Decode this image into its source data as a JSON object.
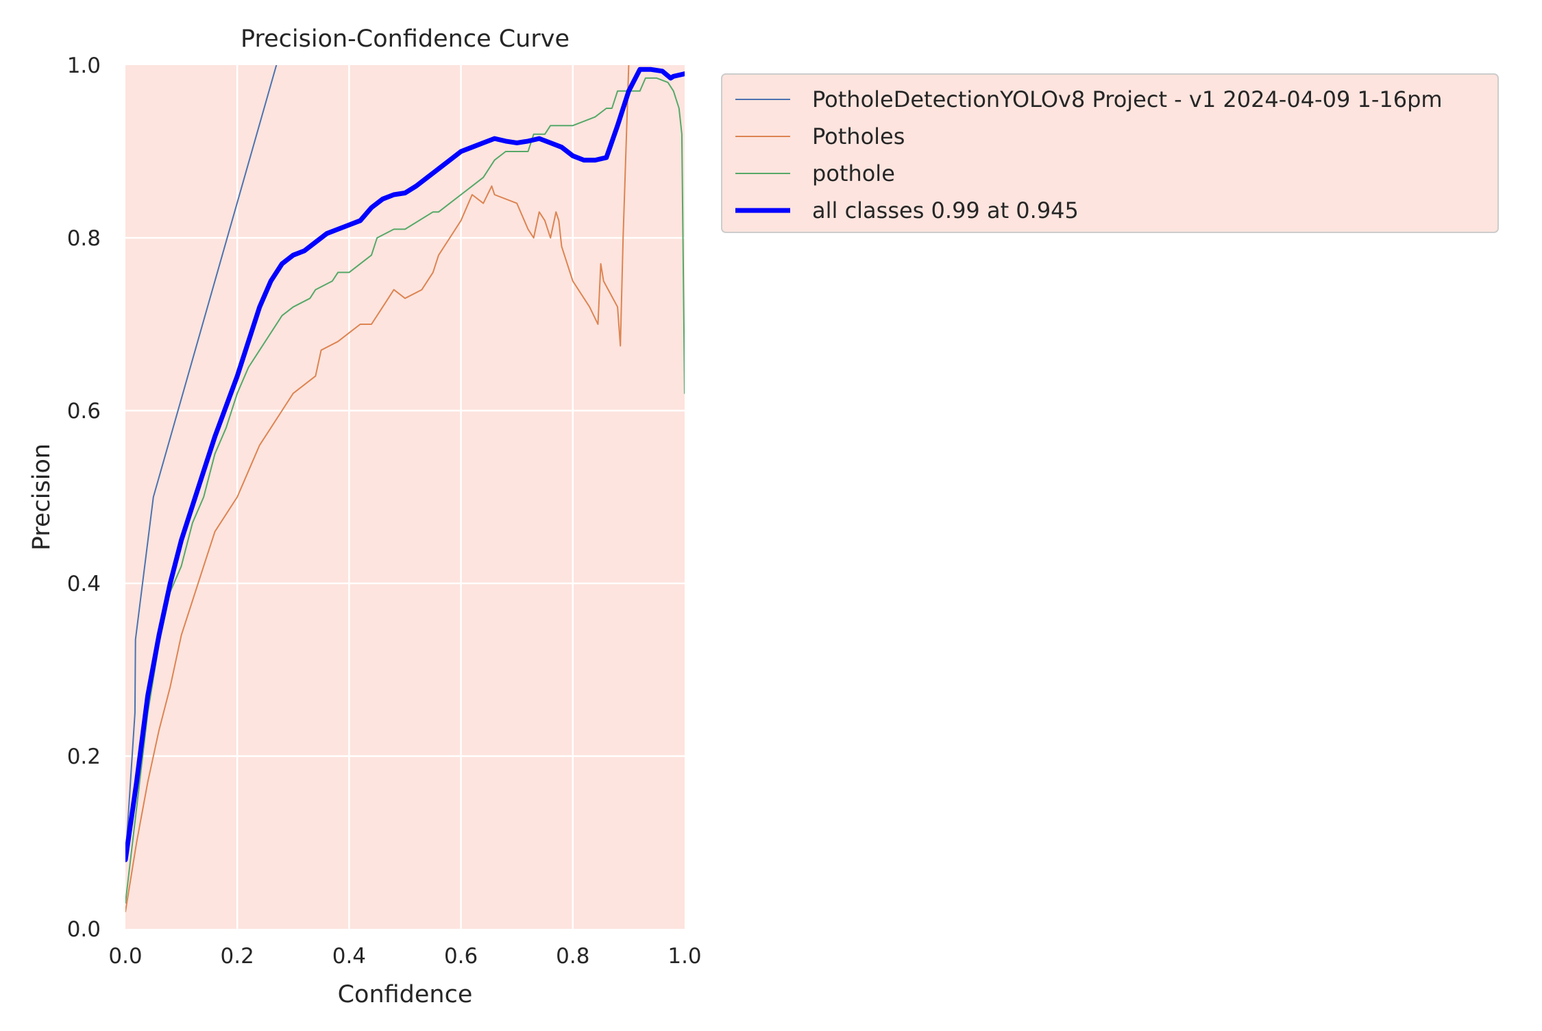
{
  "chart_data": {
    "type": "line",
    "title": "Precision-Confidence Curve",
    "xlabel": "Confidence",
    "ylabel": "Precision",
    "xlim": [
      0,
      1
    ],
    "ylim": [
      0,
      1
    ],
    "xticks": [
      "0.0",
      "0.2",
      "0.4",
      "0.6",
      "0.8",
      "1.0"
    ],
    "yticks": [
      "0.0",
      "0.2",
      "0.4",
      "0.6",
      "0.8",
      "1.0"
    ],
    "grid": true,
    "legend_position": "outside-right-top",
    "plot_background": "#fde4de",
    "series": [
      {
        "name": "PotholeDetectionYOLOv8 Project - v1 2024-04-09 1-16pm",
        "color": "#4c72b0",
        "width": 2,
        "x": [
          0.0,
          0.017,
          0.018,
          0.05,
          0.27,
          0.3
        ],
        "y": [
          0.08,
          0.25,
          0.335,
          0.5,
          1.0,
          1.05
        ]
      },
      {
        "name": "Potholes",
        "color": "#dd8452",
        "width": 2,
        "x": [
          0.0,
          0.02,
          0.04,
          0.06,
          0.08,
          0.1,
          0.12,
          0.14,
          0.16,
          0.18,
          0.2,
          0.22,
          0.24,
          0.26,
          0.28,
          0.3,
          0.34,
          0.35,
          0.38,
          0.4,
          0.42,
          0.44,
          0.46,
          0.48,
          0.5,
          0.53,
          0.55,
          0.56,
          0.58,
          0.6,
          0.62,
          0.64,
          0.655,
          0.66,
          0.7,
          0.72,
          0.73,
          0.74,
          0.75,
          0.76,
          0.77,
          0.775,
          0.78,
          0.8,
          0.83,
          0.845,
          0.85,
          0.855,
          0.88,
          0.885,
          0.89,
          0.9
        ],
        "y": [
          0.02,
          0.1,
          0.17,
          0.23,
          0.28,
          0.34,
          0.38,
          0.42,
          0.46,
          0.48,
          0.5,
          0.53,
          0.56,
          0.58,
          0.6,
          0.62,
          0.64,
          0.67,
          0.68,
          0.69,
          0.7,
          0.7,
          0.72,
          0.74,
          0.73,
          0.74,
          0.76,
          0.78,
          0.8,
          0.82,
          0.85,
          0.84,
          0.86,
          0.85,
          0.84,
          0.81,
          0.8,
          0.83,
          0.82,
          0.8,
          0.83,
          0.82,
          0.79,
          0.75,
          0.72,
          0.7,
          0.77,
          0.75,
          0.72,
          0.675,
          0.8,
          1.0
        ]
      },
      {
        "name": "pothole",
        "color": "#55a868",
        "width": 2,
        "x": [
          0.0,
          0.02,
          0.04,
          0.06,
          0.08,
          0.1,
          0.12,
          0.14,
          0.16,
          0.18,
          0.2,
          0.22,
          0.24,
          0.26,
          0.28,
          0.3,
          0.33,
          0.34,
          0.37,
          0.38,
          0.4,
          0.42,
          0.44,
          0.45,
          0.48,
          0.5,
          0.55,
          0.56,
          0.58,
          0.6,
          0.62,
          0.64,
          0.66,
          0.68,
          0.72,
          0.73,
          0.75,
          0.76,
          0.8,
          0.84,
          0.86,
          0.87,
          0.88,
          0.9,
          0.92,
          0.93,
          0.95,
          0.97,
          0.98,
          0.99,
          0.995,
          1.0
        ],
        "y": [
          0.03,
          0.14,
          0.25,
          0.33,
          0.39,
          0.42,
          0.47,
          0.5,
          0.55,
          0.58,
          0.62,
          0.65,
          0.67,
          0.69,
          0.71,
          0.72,
          0.73,
          0.74,
          0.75,
          0.76,
          0.76,
          0.77,
          0.78,
          0.8,
          0.81,
          0.81,
          0.83,
          0.83,
          0.84,
          0.85,
          0.86,
          0.87,
          0.89,
          0.9,
          0.9,
          0.92,
          0.92,
          0.93,
          0.93,
          0.94,
          0.95,
          0.95,
          0.97,
          0.97,
          0.97,
          0.985,
          0.985,
          0.98,
          0.97,
          0.95,
          0.92,
          0.62
        ]
      },
      {
        "name": "all classes 0.99 at 0.945",
        "color": "#0000ff",
        "width": 7,
        "x": [
          0.0,
          0.02,
          0.04,
          0.06,
          0.08,
          0.1,
          0.12,
          0.14,
          0.16,
          0.18,
          0.2,
          0.22,
          0.24,
          0.26,
          0.28,
          0.3,
          0.32,
          0.34,
          0.36,
          0.38,
          0.4,
          0.42,
          0.44,
          0.46,
          0.48,
          0.5,
          0.52,
          0.54,
          0.56,
          0.58,
          0.6,
          0.62,
          0.64,
          0.66,
          0.68,
          0.7,
          0.72,
          0.74,
          0.76,
          0.78,
          0.8,
          0.82,
          0.84,
          0.86,
          0.88,
          0.9,
          0.92,
          0.94,
          0.96,
          0.975,
          0.98,
          1.0
        ],
        "y": [
          0.08,
          0.17,
          0.27,
          0.34,
          0.4,
          0.45,
          0.49,
          0.53,
          0.57,
          0.605,
          0.64,
          0.68,
          0.72,
          0.75,
          0.77,
          0.78,
          0.785,
          0.795,
          0.805,
          0.81,
          0.815,
          0.82,
          0.835,
          0.845,
          0.85,
          0.852,
          0.86,
          0.87,
          0.88,
          0.89,
          0.9,
          0.905,
          0.91,
          0.915,
          0.912,
          0.91,
          0.912,
          0.915,
          0.91,
          0.905,
          0.895,
          0.89,
          0.89,
          0.893,
          0.93,
          0.97,
          0.995,
          0.995,
          0.993,
          0.985,
          0.987,
          0.99
        ]
      }
    ]
  }
}
